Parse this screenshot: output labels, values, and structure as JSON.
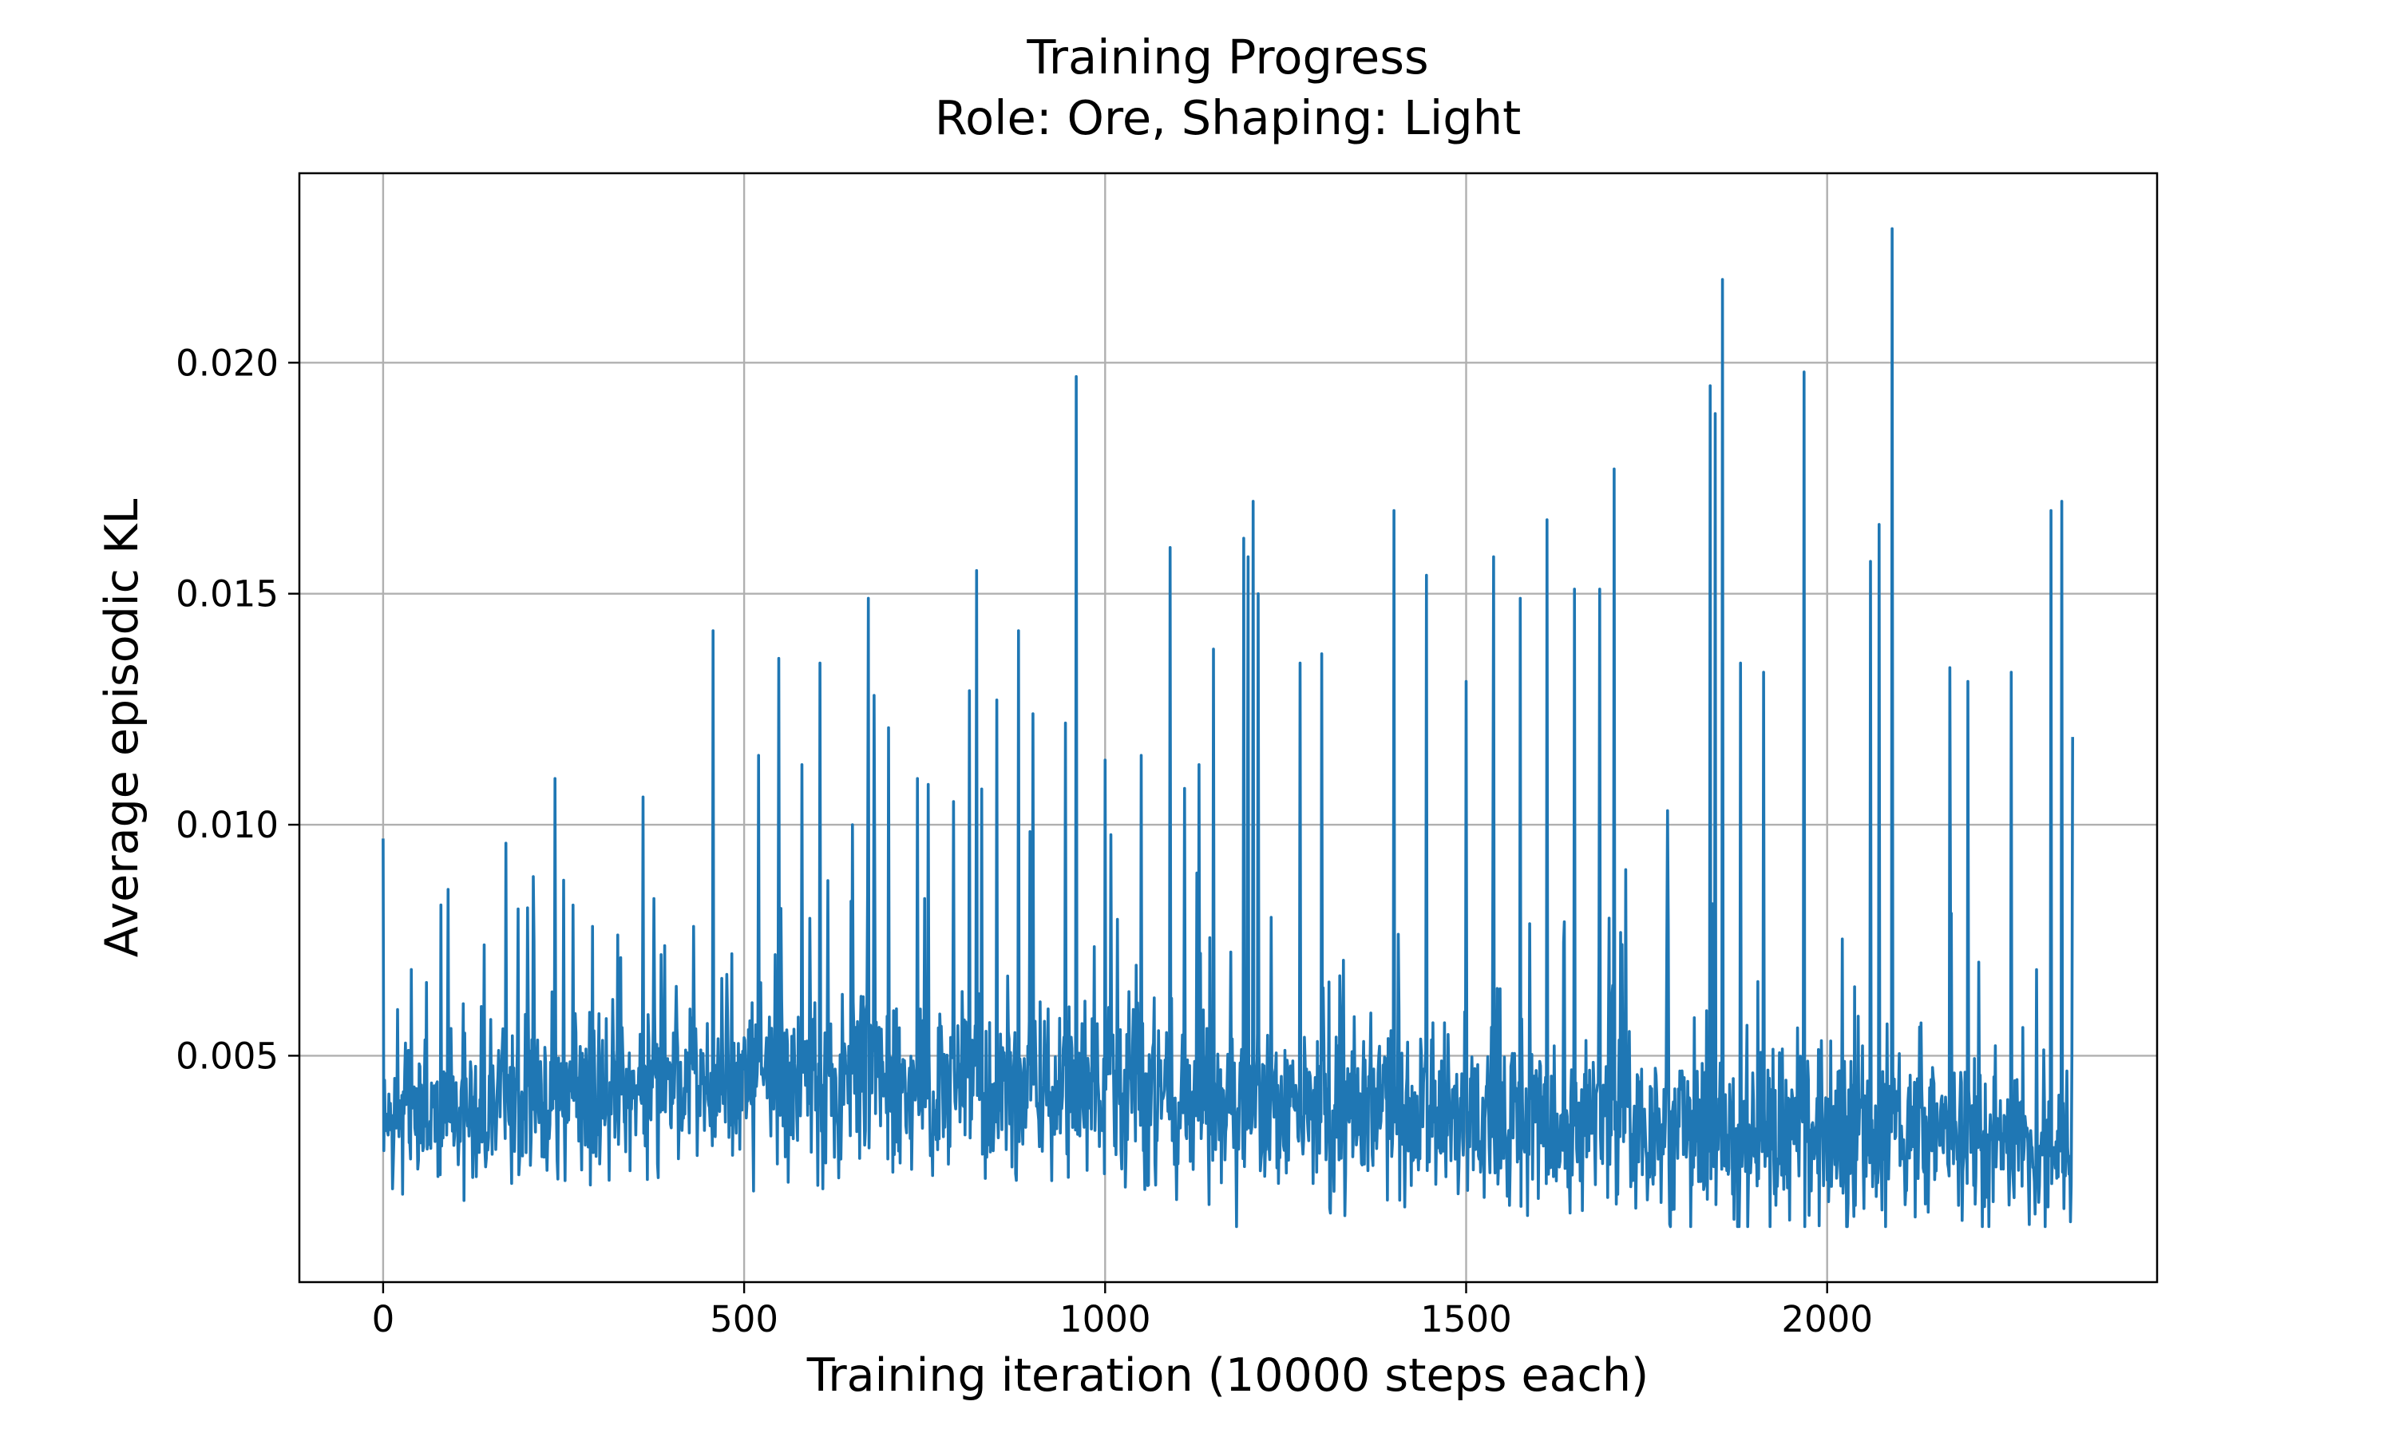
{
  "chart_data": {
    "type": "line",
    "title": "Training Progress",
    "subtitle": "Role: Ore, Shaping: Light",
    "xlabel": "Training iteration (10000 steps each)",
    "ylabel": "Average episodic KL",
    "xlim": [
      -116,
      2457
    ],
    "ylim": [
      0.0001,
      0.0241
    ],
    "xticks": [
      0,
      500,
      1000,
      1500,
      2000
    ],
    "xtick_labels": [
      "0",
      "500",
      "1000",
      "1500",
      "2000"
    ],
    "yticks": [
      0.005,
      0.01,
      0.015,
      0.02
    ],
    "ytick_labels": [
      "0.005",
      "0.010",
      "0.015",
      "0.020"
    ],
    "grid": true,
    "legend": "none",
    "colors": {
      "line": "#1f77b4",
      "grid": "#b0b0b0",
      "frame": "#000000"
    },
    "series": [
      {
        "x_start": 0,
        "x_end": 2340,
        "num_points": 2341,
        "y_range": [
          0.0013,
          0.0229
        ],
        "baseline_segments": [
          {
            "x": 0,
            "mean": 0.0036,
            "spread": 0.0012
          },
          {
            "x": 450,
            "mean": 0.0045,
            "spread": 0.0014
          },
          {
            "x": 1000,
            "mean": 0.0042,
            "spread": 0.0016
          },
          {
            "x": 1500,
            "mean": 0.0036,
            "spread": 0.0014
          },
          {
            "x": 2000,
            "mean": 0.0033,
            "spread": 0.0015
          },
          {
            "x": 2340,
            "mean": 0.003,
            "spread": 0.0012
          }
        ],
        "peaks": [
          {
            "x": 0,
            "y": 0.0097
          },
          {
            "x": 20,
            "y": 0.006
          },
          {
            "x": 90,
            "y": 0.0086
          },
          {
            "x": 140,
            "y": 0.0074
          },
          {
            "x": 170,
            "y": 0.0096
          },
          {
            "x": 200,
            "y": 0.0082
          },
          {
            "x": 238,
            "y": 0.011
          },
          {
            "x": 250,
            "y": 0.0088
          },
          {
            "x": 290,
            "y": 0.0078
          },
          {
            "x": 360,
            "y": 0.0106
          },
          {
            "x": 375,
            "y": 0.0084
          },
          {
            "x": 430,
            "y": 0.0078
          },
          {
            "x": 457,
            "y": 0.0142
          },
          {
            "x": 520,
            "y": 0.0115
          },
          {
            "x": 548,
            "y": 0.0136
          },
          {
            "x": 580,
            "y": 0.0113
          },
          {
            "x": 605,
            "y": 0.0135
          },
          {
            "x": 650,
            "y": 0.01
          },
          {
            "x": 672,
            "y": 0.0149
          },
          {
            "x": 680,
            "y": 0.0128
          },
          {
            "x": 700,
            "y": 0.0121
          },
          {
            "x": 740,
            "y": 0.011
          },
          {
            "x": 790,
            "y": 0.0105
          },
          {
            "x": 812,
            "y": 0.0129
          },
          {
            "x": 822,
            "y": 0.0155
          },
          {
            "x": 850,
            "y": 0.0127
          },
          {
            "x": 880,
            "y": 0.0142
          },
          {
            "x": 900,
            "y": 0.0124
          },
          {
            "x": 945,
            "y": 0.0122
          },
          {
            "x": 960,
            "y": 0.0197
          },
          {
            "x": 1000,
            "y": 0.0114
          },
          {
            "x": 1050,
            "y": 0.0115
          },
          {
            "x": 1090,
            "y": 0.016
          },
          {
            "x": 1130,
            "y": 0.0113
          },
          {
            "x": 1150,
            "y": 0.0138
          },
          {
            "x": 1192,
            "y": 0.0162
          },
          {
            "x": 1198,
            "y": 0.0158
          },
          {
            "x": 1205,
            "y": 0.017
          },
          {
            "x": 1212,
            "y": 0.015
          },
          {
            "x": 1270,
            "y": 0.0135
          },
          {
            "x": 1300,
            "y": 0.0137
          },
          {
            "x": 1400,
            "y": 0.0168
          },
          {
            "x": 1445,
            "y": 0.0154
          },
          {
            "x": 1500,
            "y": 0.0131
          },
          {
            "x": 1538,
            "y": 0.0158
          },
          {
            "x": 1575,
            "y": 0.0149
          },
          {
            "x": 1612,
            "y": 0.0166
          },
          {
            "x": 1650,
            "y": 0.0151
          },
          {
            "x": 1685,
            "y": 0.0151
          },
          {
            "x": 1705,
            "y": 0.0177
          },
          {
            "x": 1838,
            "y": 0.0195
          },
          {
            "x": 1845,
            "y": 0.0189
          },
          {
            "x": 1855,
            "y": 0.0218
          },
          {
            "x": 1880,
            "y": 0.0135
          },
          {
            "x": 1912,
            "y": 0.0133
          },
          {
            "x": 1968,
            "y": 0.0198
          },
          {
            "x": 2060,
            "y": 0.0157
          },
          {
            "x": 2072,
            "y": 0.0165
          },
          {
            "x": 2090,
            "y": 0.0229
          },
          {
            "x": 2170,
            "y": 0.0134
          },
          {
            "x": 2195,
            "y": 0.0131
          },
          {
            "x": 2255,
            "y": 0.0133
          },
          {
            "x": 2310,
            "y": 0.0168
          },
          {
            "x": 2325,
            "y": 0.017
          },
          {
            "x": 2340,
            "y": 0.0119
          }
        ]
      }
    ]
  }
}
